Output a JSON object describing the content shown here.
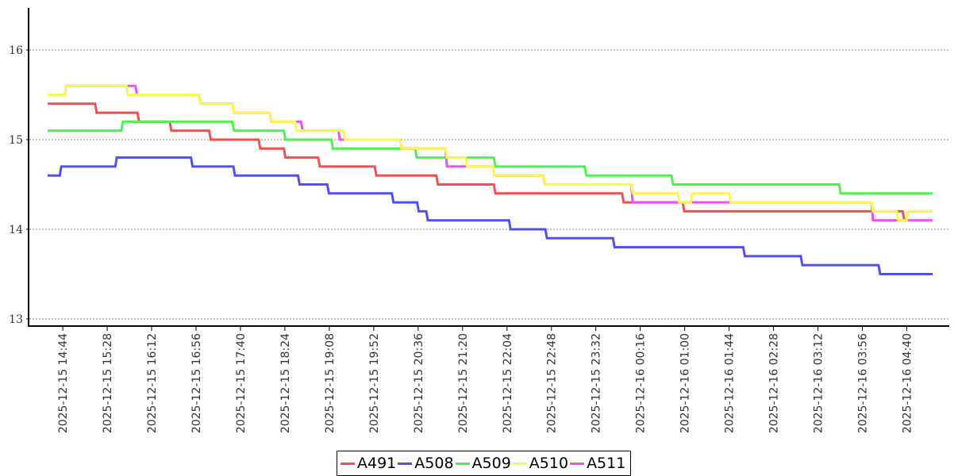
{
  "chart_data": {
    "type": "line",
    "step": true,
    "title": "",
    "xlabel": "",
    "ylabel": "",
    "ylim": [
      12.9,
      16.5
    ],
    "yticks": [
      13,
      14,
      15,
      16
    ],
    "xrange": [
      "2025-12-15 14:29",
      "2025-12-16 05:04"
    ],
    "xticks": [
      "2025-12-15 14:44",
      "2025-12-15 15:28",
      "2025-12-15 16:12",
      "2025-12-15 16:56",
      "2025-12-15 17:40",
      "2025-12-15 18:24",
      "2025-12-15 19:08",
      "2025-12-15 19:52",
      "2025-12-15 20:36",
      "2025-12-15 21:20",
      "2025-12-15 22:04",
      "2025-12-15 22:48",
      "2025-12-15 23:32",
      "2025-12-16 00:16",
      "2025-12-16 01:00",
      "2025-12-16 01:44",
      "2025-12-16 02:28",
      "2025-12-16 03:12",
      "2025-12-16 03:56",
      "2025-12-16 04:40"
    ],
    "grid": "horizontal dotted",
    "legend": "bottom",
    "series": [
      {
        "name": "A491",
        "color": "#f05050",
        "steps": [
          [
            "2025-12-15 14:29",
            15.4
          ],
          [
            "2025-12-15 15:16",
            15.3
          ],
          [
            "2025-12-15 15:58",
            15.2
          ],
          [
            "2025-12-15 16:30",
            15.1
          ],
          [
            "2025-12-15 17:09",
            15.0
          ],
          [
            "2025-12-15 17:58",
            14.9
          ],
          [
            "2025-12-15 18:23",
            14.8
          ],
          [
            "2025-12-15 18:57",
            14.7
          ],
          [
            "2025-12-15 19:53",
            14.6
          ],
          [
            "2025-12-15 20:54",
            14.5
          ],
          [
            "2025-12-15 21:51",
            14.4
          ],
          [
            "2025-12-15 23:58",
            14.3
          ],
          [
            "2025-12-16 00:58",
            14.2
          ],
          [
            "2025-12-16 04:36",
            14.1
          ],
          [
            "2025-12-16 04:40",
            14.2
          ],
          [
            "2025-12-16 05:04",
            14.2
          ]
        ]
      },
      {
        "name": "A508",
        "color": "#5050f0",
        "steps": [
          [
            "2025-12-15 14:29",
            14.6
          ],
          [
            "2025-12-15 14:41",
            14.7
          ],
          [
            "2025-12-15 15:36",
            14.8
          ],
          [
            "2025-12-15 16:51",
            14.7
          ],
          [
            "2025-12-15 17:33",
            14.6
          ],
          [
            "2025-12-15 18:37",
            14.5
          ],
          [
            "2025-12-15 19:06",
            14.4
          ],
          [
            "2025-12-15 20:10",
            14.3
          ],
          [
            "2025-12-15 20:35",
            14.2
          ],
          [
            "2025-12-15 20:44",
            14.1
          ],
          [
            "2025-12-15 22:06",
            14.0
          ],
          [
            "2025-12-15 22:42",
            13.9
          ],
          [
            "2025-12-15 23:49",
            13.8
          ],
          [
            "2025-12-16 01:58",
            13.7
          ],
          [
            "2025-12-16 02:55",
            13.6
          ],
          [
            "2025-12-16 04:12",
            13.5
          ],
          [
            "2025-12-16 05:04",
            13.5
          ]
        ]
      },
      {
        "name": "A509",
        "color": "#50f050",
        "steps": [
          [
            "2025-12-15 14:29",
            15.1
          ],
          [
            "2025-12-15 15:42",
            15.2
          ],
          [
            "2025-12-15 17:32",
            15.1
          ],
          [
            "2025-12-15 18:23",
            15.0
          ],
          [
            "2025-12-15 19:10",
            14.9
          ],
          [
            "2025-12-15 20:33",
            14.8
          ],
          [
            "2025-12-15 21:51",
            14.7
          ],
          [
            "2025-12-15 23:21",
            14.6
          ],
          [
            "2025-12-16 00:47",
            14.5
          ],
          [
            "2025-12-16 03:33",
            14.4
          ],
          [
            "2025-12-16 05:04",
            14.4
          ]
        ]
      },
      {
        "name": "A511",
        "color": "#f050f0",
        "steps": [
          [
            "2025-12-15 14:29",
            15.5
          ],
          [
            "2025-12-15 14:46",
            15.6
          ],
          [
            "2025-12-15 15:56",
            15.5
          ],
          [
            "2025-12-15 16:59",
            15.4
          ],
          [
            "2025-12-15 17:32",
            15.3
          ],
          [
            "2025-12-15 18:09",
            15.2
          ],
          [
            "2025-12-15 18:40",
            15.1
          ],
          [
            "2025-12-15 19:17",
            15.0
          ],
          [
            "2025-12-15 20:18",
            14.9
          ],
          [
            "2025-12-15 21:03",
            14.7
          ],
          [
            "2025-12-15 21:50",
            14.6
          ],
          [
            "2025-12-15 22:40",
            14.5
          ],
          [
            "2025-12-16 00:07",
            14.3
          ],
          [
            "2025-12-16 00:53",
            14.3
          ],
          [
            "2025-12-16 04:05",
            14.1
          ],
          [
            "2025-12-16 05:04",
            14.1
          ]
        ]
      },
      {
        "name": "A510",
        "color": "#f8f850",
        "steps": [
          [
            "2025-12-15 14:29",
            15.5
          ],
          [
            "2025-12-15 14:46",
            15.6
          ],
          [
            "2025-12-15 15:47",
            15.5
          ],
          [
            "2025-12-15 16:59",
            15.4
          ],
          [
            "2025-12-15 17:32",
            15.3
          ],
          [
            "2025-12-15 18:09",
            15.2
          ],
          [
            "2025-12-15 18:34",
            15.1
          ],
          [
            "2025-12-15 19:22",
            15.0
          ],
          [
            "2025-12-15 20:18",
            14.9
          ],
          [
            "2025-12-15 21:03",
            14.8
          ],
          [
            "2025-12-15 21:23",
            14.7
          ],
          [
            "2025-12-15 21:50",
            14.6
          ],
          [
            "2025-12-15 22:40",
            14.5
          ],
          [
            "2025-12-16 00:07",
            14.4
          ],
          [
            "2025-12-16 00:53",
            14.3
          ],
          [
            "2025-12-16 01:06",
            14.4
          ],
          [
            "2025-12-16 01:44",
            14.3
          ],
          [
            "2025-12-16 04:05",
            14.2
          ],
          [
            "2025-12-16 04:30",
            14.1
          ],
          [
            "2025-12-16 04:40",
            14.2
          ],
          [
            "2025-12-16 05:04",
            14.2
          ]
        ]
      }
    ],
    "legend_order": [
      "A491",
      "A508",
      "A509",
      "A510",
      "A511"
    ]
  }
}
